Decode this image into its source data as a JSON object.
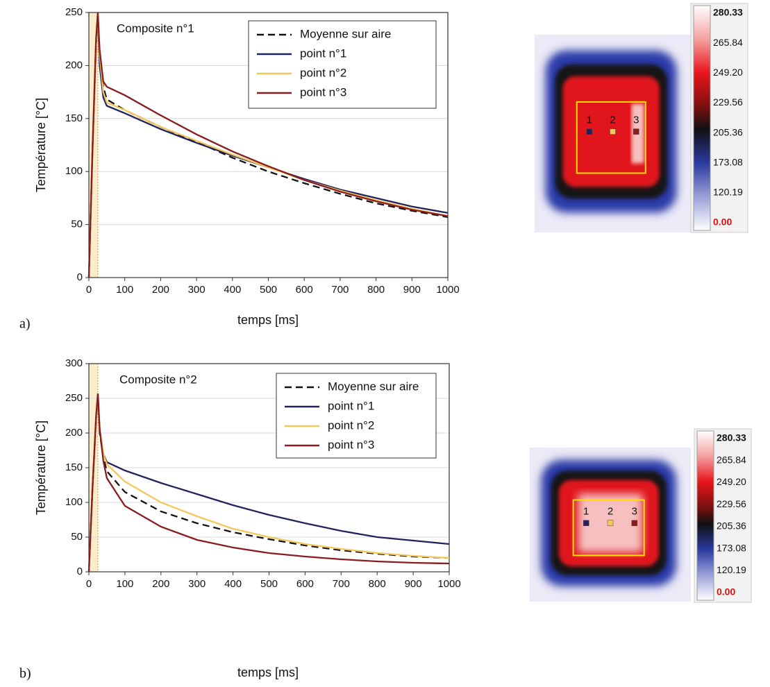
{
  "chart_data": [
    {
      "type": "line",
      "title": "Composite n°1",
      "x_label": "temps [ms]",
      "y_label": "Température [°C]",
      "x": [
        0,
        10,
        20,
        25,
        30,
        40,
        50,
        100,
        200,
        300,
        400,
        500,
        600,
        700,
        800,
        900,
        1000
      ],
      "series": [
        {
          "name": "Moyenne sur aire",
          "color": "#111111",
          "style": "dashed",
          "values": [
            0,
            120,
            220,
            245,
            210,
            180,
            168,
            158,
            142,
            128,
            113,
            100,
            89,
            79,
            70,
            63,
            57
          ]
        },
        {
          "name": "point n°1",
          "color": "#22235e",
          "style": "solid",
          "values": [
            0,
            120,
            220,
            248,
            200,
            170,
            162,
            155,
            140,
            127,
            115,
            104,
            93,
            83,
            75,
            67,
            61
          ]
        },
        {
          "name": "point n°2",
          "color": "#f3c75a",
          "style": "solid",
          "values": [
            0,
            120,
            220,
            250,
            210,
            175,
            165,
            158,
            142,
            129,
            116,
            104,
            92,
            82,
            73,
            65,
            58
          ]
        },
        {
          "name": "point n°3",
          "color": "#8a1b1f",
          "style": "solid",
          "values": [
            0,
            120,
            225,
            250,
            215,
            185,
            180,
            172,
            153,
            135,
            119,
            105,
            92,
            81,
            72,
            64,
            58
          ]
        }
      ],
      "xlim": [
        0,
        1000
      ],
      "xticks": [
        0,
        100,
        200,
        300,
        400,
        500,
        600,
        700,
        800,
        900,
        1000
      ],
      "ylim": [
        0,
        250
      ],
      "yticks": [
        0,
        50,
        100,
        150,
        200,
        250
      ],
      "grid": true,
      "legend": "top-right"
    },
    {
      "type": "line",
      "title": "Composite n°2",
      "x_label": "temps [ms]",
      "y_label": "Température [°C]",
      "x": [
        0,
        10,
        20,
        25,
        30,
        40,
        50,
        100,
        200,
        300,
        400,
        500,
        600,
        700,
        800,
        900,
        1000
      ],
      "series": [
        {
          "name": "Moyenne sur aire",
          "color": "#111111",
          "style": "dashed",
          "values": [
            0,
            120,
            220,
            255,
            200,
            165,
            145,
            115,
            87,
            70,
            57,
            47,
            38,
            31,
            26,
            22,
            20
          ]
        },
        {
          "name": "point n°1",
          "color": "#22235e",
          "style": "solid",
          "values": [
            0,
            120,
            220,
            252,
            205,
            170,
            158,
            146,
            128,
            112,
            96,
            82,
            70,
            59,
            50,
            45,
            40
          ]
        },
        {
          "name": "point n°2",
          "color": "#f3c75a",
          "style": "solid",
          "values": [
            0,
            120,
            220,
            255,
            205,
            170,
            155,
            130,
            100,
            80,
            62,
            50,
            40,
            33,
            27,
            23,
            20
          ]
        },
        {
          "name": "point n°3",
          "color": "#8a1b1f",
          "style": "solid",
          "values": [
            0,
            120,
            225,
            257,
            205,
            160,
            135,
            95,
            65,
            46,
            35,
            27,
            22,
            18,
            15,
            13,
            12
          ]
        }
      ],
      "xlim": [
        0,
        1000
      ],
      "xticks": [
        0,
        100,
        200,
        300,
        400,
        500,
        600,
        700,
        800,
        900,
        1000
      ],
      "ylim": [
        0,
        300
      ],
      "yticks": [
        0,
        50,
        100,
        150,
        200,
        250,
        300
      ],
      "grid": true,
      "legend": "top-right"
    }
  ],
  "panels": [
    {
      "label": "a)",
      "point_labels": [
        "1",
        "2",
        "3"
      ],
      "colorbar_labels": [
        "280.33",
        "265.84",
        "249.20",
        "229.56",
        "205.36",
        "173.08",
        "120.19",
        "0.00"
      ]
    },
    {
      "label": "b)",
      "point_labels": [
        "1",
        "2",
        "3"
      ],
      "colorbar_labels": [
        "280.33",
        "265.84",
        "249.20",
        "229.56",
        "205.36",
        "173.08",
        "120.19",
        "0.00"
      ]
    }
  ]
}
